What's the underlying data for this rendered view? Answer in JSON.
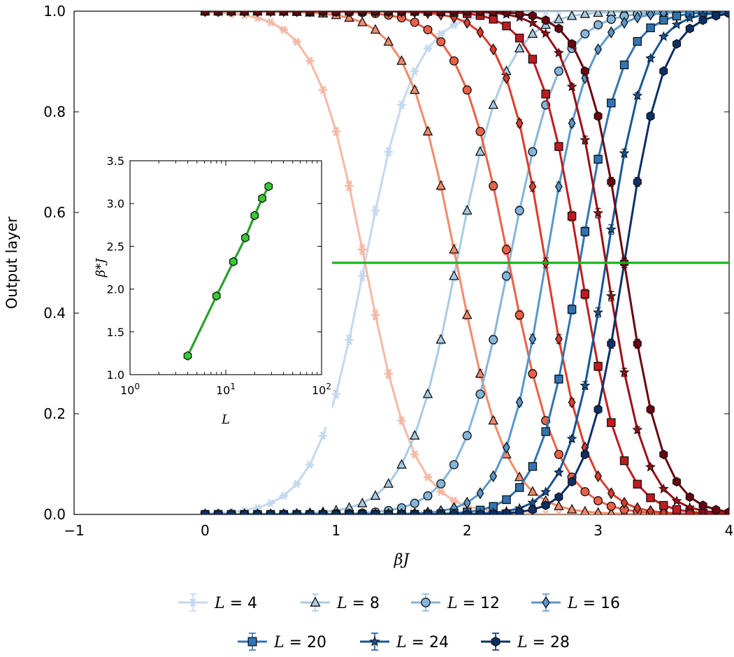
{
  "chart_data": [
    {
      "type": "line",
      "xlabel": "βJ",
      "ylabel": "Output layer",
      "xlim": [
        -1,
        4
      ],
      "ylim": [
        0,
        1
      ],
      "xticks": [
        "−1",
        "0",
        "1",
        "2",
        "3",
        "4"
      ],
      "yticks": [
        "0.0",
        "0.2",
        "0.4",
        "0.6",
        "0.8",
        "1.0"
      ],
      "grid": false,
      "legend_position": "bottom",
      "crossing_line": {
        "y": 0.5,
        "color": "#19b319"
      },
      "series": [
        {
          "name": "L = 4",
          "L": 4,
          "marker": "asterisk",
          "color_blue": "#c5d9ee",
          "color_red": "#f5b9a5",
          "transition": 1.22,
          "width": 0.19
        },
        {
          "name": "L = 8",
          "L": 8,
          "marker": "triangle",
          "color_blue": "#a9cbe3",
          "color_red": "#f28a6a",
          "transition": 1.92,
          "width": 0.19
        },
        {
          "name": "L = 12",
          "L": 12,
          "marker": "circle",
          "color_blue": "#85b5da",
          "color_red": "#ec6146",
          "transition": 2.32,
          "width": 0.19
        },
        {
          "name": "L = 16",
          "L": 16,
          "marker": "diamond",
          "color_blue": "#5997cb",
          "color_red": "#dc3b2c",
          "transition": 2.6,
          "width": 0.16
        },
        {
          "name": "L = 20",
          "L": 20,
          "marker": "square",
          "color_blue": "#3274b3",
          "color_red": "#bf1c20",
          "transition": 2.86,
          "width": 0.16
        },
        {
          "name": "L = 24",
          "L": 24,
          "marker": "star",
          "color_blue": "#17559a",
          "color_red": "#9a0e17",
          "transition": 3.06,
          "width": 0.15
        },
        {
          "name": "L = 28",
          "L": 28,
          "marker": "hexagon",
          "color_blue": "#0d3068",
          "color_red": "#6b0410",
          "transition": 3.2,
          "width": 0.15
        }
      ]
    },
    {
      "type": "line",
      "xlabel": "L",
      "ylabel": "β*J",
      "xscale": "log",
      "xlim": [
        1,
        100
      ],
      "ylim": [
        1.0,
        3.5
      ],
      "xticks": [
        {
          "base": "10",
          "exp": "0"
        },
        {
          "base": "10",
          "exp": "1"
        },
        {
          "base": "10",
          "exp": "2"
        }
      ],
      "yticks": [
        "1.0",
        "1.5",
        "2.0",
        "2.5",
        "3.0",
        "3.5"
      ],
      "color": "#2ca02c",
      "marker_color": "#33cc33",
      "x": [
        4,
        8,
        12,
        16,
        20,
        24,
        28
      ],
      "y": [
        1.22,
        1.92,
        2.32,
        2.6,
        2.86,
        3.06,
        3.2
      ]
    }
  ]
}
